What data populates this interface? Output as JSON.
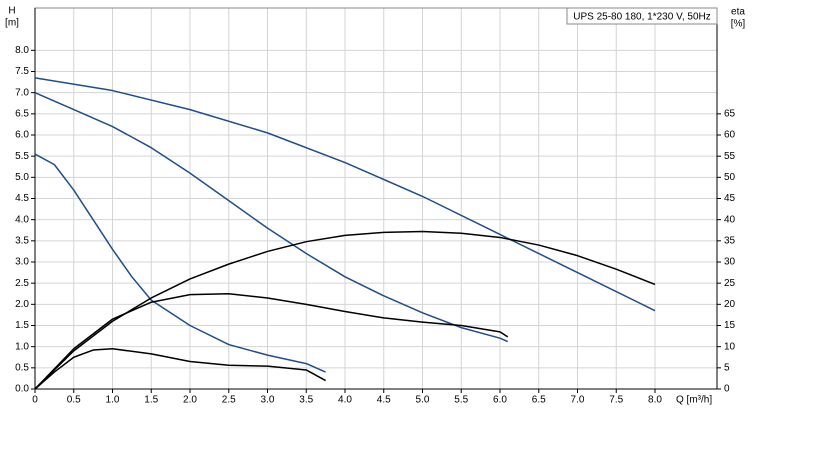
{
  "chart_data": {
    "type": "line",
    "title": "UPS 25-80 180, 1*230 V, 50Hz",
    "ylabel": [
      "H",
      "[m]"
    ],
    "y2label": [
      "eta",
      "[%]"
    ],
    "xlabel": "Q [m³/h]",
    "xlim": [
      0,
      8.8
    ],
    "xticks": [
      {
        "value": 0,
        "label": "0"
      },
      0.5,
      {
        "value": 1,
        "label": "1.0"
      },
      1.5,
      {
        "value": 2,
        "label": "2.0"
      },
      2.5,
      {
        "value": 3,
        "label": "3.0"
      },
      3.5,
      {
        "value": 4,
        "label": "4.0"
      },
      4.5,
      {
        "value": 5,
        "label": "5.0"
      },
      5.5,
      {
        "value": 6,
        "label": "6.0"
      },
      6.5,
      {
        "value": 7,
        "label": "7.0"
      },
      7.5,
      {
        "value": 8,
        "label": "8.0"
      }
    ],
    "ylim": [
      0,
      9
    ],
    "yticks": [
      {
        "value": 0,
        "label": "0.0"
      },
      0.5,
      {
        "value": 1,
        "label": "1.0"
      },
      1.5,
      {
        "value": 2,
        "label": "2.0"
      },
      2.5,
      {
        "value": 3,
        "label": "3.0"
      },
      3.5,
      {
        "value": 4,
        "label": "4.0"
      },
      4.5,
      {
        "value": 5,
        "label": "5.0"
      },
      5.5,
      {
        "value": 6,
        "label": "6.0"
      },
      6.5,
      {
        "value": 7,
        "label": "7.0"
      },
      7.5,
      {
        "value": 8,
        "label": "8.0"
      }
    ],
    "y2lim": [
      0,
      90
    ],
    "y2ticks": [
      0,
      5,
      10,
      15,
      20,
      25,
      30,
      35,
      40,
      45,
      50,
      55,
      60,
      65
    ],
    "grid": true,
    "series": [
      {
        "color": "#1f4e8c",
        "x": [
          0,
          1,
          2,
          3,
          4,
          5,
          6,
          7,
          8
        ],
        "values": [
          7.35,
          7.05,
          6.6,
          6.05,
          5.35,
          4.55,
          3.65,
          2.75,
          1.85
        ]
      },
      {
        "color": "#1f4e8c",
        "x": [
          0,
          0.5,
          1,
          1.5,
          2,
          2.5,
          3,
          3.5,
          4,
          4.5,
          5,
          5.5,
          6,
          6.1
        ],
        "values": [
          7.0,
          6.6,
          6.2,
          5.7,
          5.1,
          4.45,
          3.8,
          3.2,
          2.65,
          2.2,
          1.8,
          1.45,
          1.2,
          1.12
        ]
      },
      {
        "color": "#1f4e8c",
        "x": [
          0,
          0.25,
          0.5,
          0.75,
          1,
          1.25,
          1.5,
          2,
          2.5,
          3,
          3.5,
          3.75
        ],
        "values": [
          5.55,
          5.3,
          4.7,
          4.0,
          3.3,
          2.65,
          2.1,
          1.5,
          1.05,
          0.8,
          0.6,
          0.4
        ]
      },
      {
        "color": "#000000",
        "axis": "y2",
        "x": [
          0,
          0.5,
          1,
          1.5,
          2,
          2.5,
          3,
          3.5,
          4,
          4.5,
          5,
          5.5,
          6,
          6.5,
          7,
          7.5,
          8
        ],
        "values": [
          0,
          9,
          16,
          21.5,
          26,
          29.5,
          32.5,
          34.8,
          36.3,
          37,
          37.2,
          36.8,
          35.8,
          34,
          31.5,
          28.3,
          24.7
        ]
      },
      {
        "color": "#000000",
        "axis": "y2",
        "x": [
          0,
          0.5,
          1,
          1.5,
          2,
          2.5,
          3,
          3.5,
          4,
          4.5,
          5,
          5.5,
          6,
          6.1
        ],
        "values": [
          0,
          9.5,
          16.5,
          20.5,
          22.3,
          22.5,
          21.5,
          20,
          18.3,
          16.8,
          15.8,
          15,
          13.5,
          12.3
        ]
      },
      {
        "color": "#000000",
        "axis": "y2",
        "x": [
          0,
          0.25,
          0.5,
          0.75,
          1,
          1.5,
          2,
          2.5,
          3,
          3.5,
          3.75
        ],
        "values": [
          0,
          4,
          7.5,
          9.2,
          9.5,
          8.3,
          6.5,
          5.6,
          5.4,
          4.5,
          2
        ]
      }
    ]
  }
}
